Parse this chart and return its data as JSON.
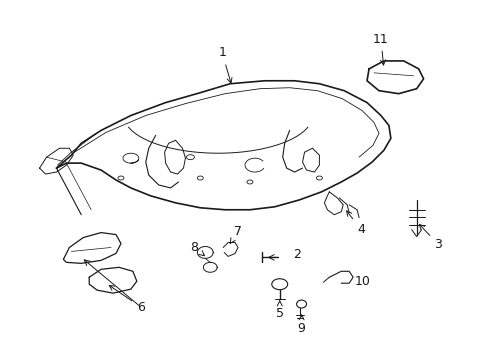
{
  "bg_color": "#ffffff",
  "line_color": "#1a1a1a",
  "figsize": [
    4.89,
    3.6
  ],
  "dpi": 100,
  "label_fontsize": 9,
  "lw_main": 1.2,
  "lw_detail": 0.7
}
